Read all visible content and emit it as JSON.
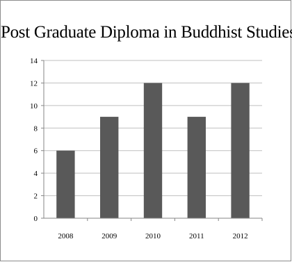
{
  "chart_data": {
    "type": "bar",
    "title": "Post Graduate Diploma in Buddhist Studies",
    "categories": [
      "2008",
      "2009",
      "2010",
      "2011",
      "2012"
    ],
    "values": [
      6,
      9,
      12,
      9,
      12
    ],
    "ylim": [
      0,
      14
    ],
    "y_ticks": [
      0,
      2,
      4,
      6,
      8,
      10,
      12,
      14
    ],
    "xlabel": "",
    "ylabel": "",
    "grid": true,
    "legend": "none",
    "bar_color": "#595959",
    "grid_color": "#bfbfbf"
  }
}
